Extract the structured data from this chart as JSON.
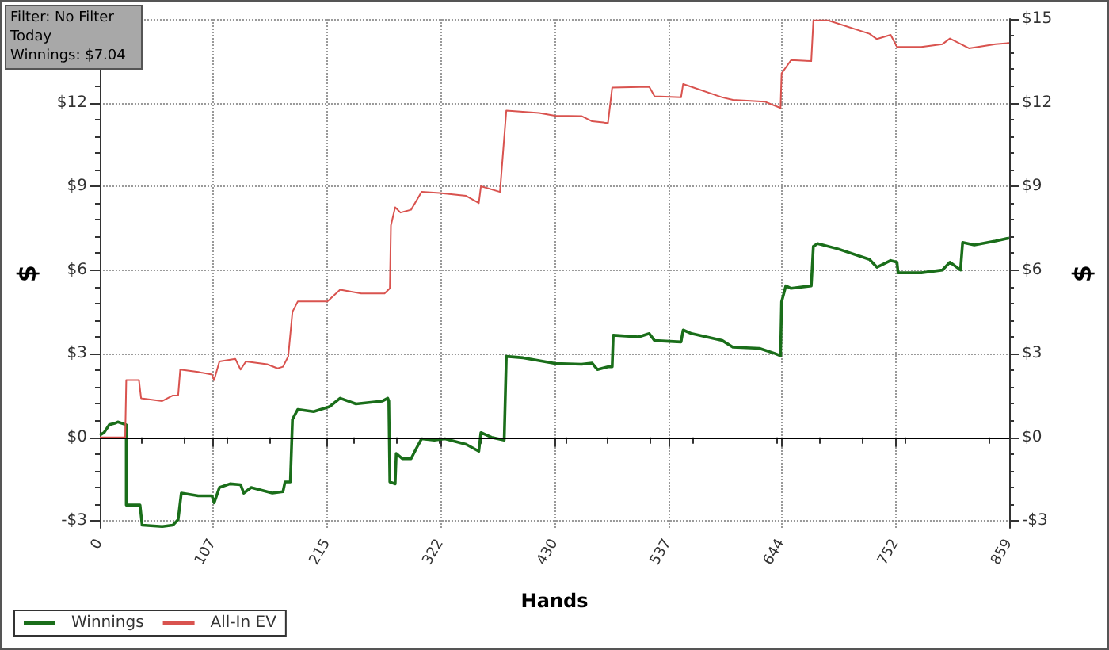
{
  "chart_data": {
    "type": "line",
    "xlabel": "Hands",
    "ylabel": "$",
    "y2label": "$",
    "annotations": [
      "Filter: No Filter",
      "Today",
      "Winnings: $7.04"
    ],
    "xlim": [
      0,
      859
    ],
    "xticks": [
      0,
      107,
      215,
      322,
      430,
      537,
      644,
      752,
      859
    ],
    "ylim": [
      -3.25,
      15
    ],
    "yticks": [
      {
        "value": -3,
        "label": "-$3"
      },
      {
        "value": 0,
        "label": "$0"
      },
      {
        "value": 3,
        "label": "$3"
      },
      {
        "value": 6,
        "label": "$6"
      },
      {
        "value": 9,
        "label": "$9"
      },
      {
        "value": 12,
        "label": "$12"
      },
      {
        "value": 15,
        "label": null
      }
    ],
    "y2lim": [
      -3.25,
      15
    ],
    "y2ticks": [
      {
        "value": -3,
        "label": "-$3"
      },
      {
        "value": 0,
        "label": "$0"
      },
      {
        "value": 3,
        "label": "$3"
      },
      {
        "value": 6,
        "label": "$6"
      },
      {
        "value": 9,
        "label": "$9"
      },
      {
        "value": 12,
        "label": "$12"
      },
      {
        "value": 15,
        "label": "$15"
      }
    ],
    "grid": true,
    "legend": "bottom left",
    "marker": "none",
    "line_style": "solid",
    "ref_lines": [
      {
        "axis": "y",
        "value": 0,
        "color": "#000000"
      }
    ],
    "series": [
      {
        "name": "Winnings",
        "color": "#1a6e1a",
        "x": [
          0,
          4,
          9,
          14,
          17,
          25,
          25,
          38,
          40,
          59,
          69,
          74,
          77,
          93,
          106,
          108,
          113,
          123,
          133,
          136,
          143,
          163,
          173,
          175,
          180,
          182,
          187,
          202,
          217,
          227,
          242,
          267,
          272,
          273,
          274,
          279,
          280,
          286,
          294,
          299,
          304,
          316,
          326,
          346,
          358,
          360,
          370,
          382,
          384,
          400,
          430,
          455,
          465,
          470,
          480,
          484,
          485,
          509,
          519,
          524,
          549,
          551,
          559,
          588,
          598,
          623,
          638,
          643,
          644,
          648,
          653,
          672,
          674,
          678,
          697,
          727,
          734,
          747,
          753,
          754,
          776,
          796,
          803,
          813,
          815,
          826,
          846,
          859
        ],
        "values": [
          0.08,
          0.17,
          0.45,
          0.5,
          0.55,
          0.45,
          -2.43,
          -2.43,
          -3.15,
          -3.2,
          -3.15,
          -2.95,
          -2.0,
          -2.1,
          -2.1,
          -2.35,
          -1.8,
          -1.67,
          -1.7,
          -2.0,
          -1.8,
          -2.0,
          -1.95,
          -1.6,
          -1.6,
          0.64,
          1.0,
          0.92,
          1.1,
          1.4,
          1.2,
          1.3,
          1.4,
          1.3,
          -1.6,
          -1.67,
          -0.58,
          -0.77,
          -0.77,
          -0.4,
          -0.05,
          -0.1,
          -0.05,
          -0.25,
          -0.5,
          0.17,
          0.0,
          -0.1,
          2.9,
          2.85,
          2.65,
          2.62,
          2.66,
          2.43,
          2.53,
          2.53,
          3.66,
          3.6,
          3.72,
          3.47,
          3.42,
          3.85,
          3.72,
          3.47,
          3.23,
          3.19,
          3.0,
          2.92,
          4.86,
          5.43,
          5.34,
          5.43,
          6.85,
          6.95,
          6.76,
          6.38,
          6.1,
          6.34,
          6.28,
          5.9,
          5.9,
          6.0,
          6.28,
          6.0,
          6.99,
          6.9,
          7.04,
          7.15
        ]
      },
      {
        "name": "All-In EV",
        "color": "#d9534f",
        "x": [
          0,
          24,
          25,
          37,
          39,
          59,
          69,
          74,
          76,
          93,
          106,
          108,
          113,
          128,
          133,
          138,
          158,
          168,
          173,
          178,
          182,
          187,
          215,
          227,
          247,
          269,
          274,
          275,
          279,
          284,
          294,
          304,
          321,
          346,
          358,
          360,
          378,
          384,
          415,
          430,
          455,
          465,
          480,
          484,
          519,
          524,
          549,
          551,
          588,
          598,
          628,
          643,
          644,
          653,
          672,
          674,
          688,
          727,
          734,
          747,
          753,
          776,
          796,
          803,
          821,
          846,
          859
        ],
        "values": [
          0,
          0,
          2.05,
          2.05,
          1.4,
          1.3,
          1.5,
          1.5,
          2.43,
          2.34,
          2.25,
          2.05,
          2.72,
          2.81,
          2.43,
          2.72,
          2.62,
          2.47,
          2.53,
          2.9,
          4.5,
          4.87,
          4.87,
          5.29,
          5.16,
          5.16,
          5.34,
          7.6,
          8.25,
          8.06,
          8.16,
          8.8,
          8.76,
          8.66,
          8.4,
          9.0,
          8.8,
          11.72,
          11.63,
          11.53,
          11.52,
          11.33,
          11.27,
          12.54,
          12.57,
          12.23,
          12.19,
          12.67,
          12.19,
          12.1,
          12.04,
          11.81,
          13.05,
          13.53,
          13.49,
          14.95,
          14.95,
          14.47,
          14.28,
          14.43,
          14.0,
          14.0,
          14.1,
          14.3,
          13.95,
          14.1,
          14.14
        ]
      }
    ]
  }
}
